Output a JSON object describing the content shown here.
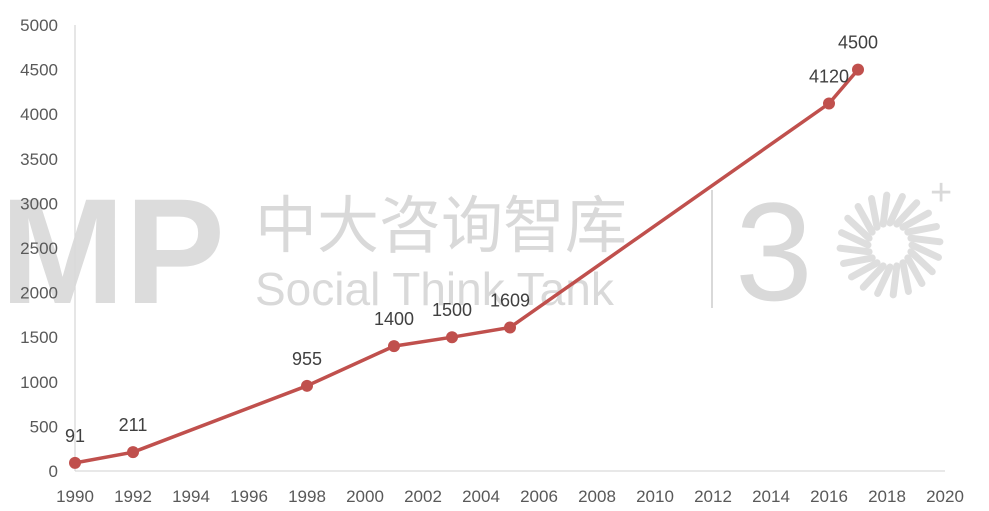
{
  "watermark": {
    "logo_text": "MP",
    "cn_title": "中大咨询智库",
    "en_title": "Social Think Tank",
    "badge_number": "3",
    "badge_sup": "+"
  },
  "chart_data": {
    "type": "line",
    "title": "",
    "xlabel": "",
    "ylabel": "",
    "xlim": [
      1990,
      2020
    ],
    "ylim": [
      0,
      5000
    ],
    "x_ticks": [
      1990,
      1992,
      1994,
      1996,
      1998,
      2000,
      2002,
      2004,
      2006,
      2008,
      2010,
      2012,
      2014,
      2016,
      2018,
      2020
    ],
    "y_ticks": [
      0,
      500,
      1000,
      1500,
      2000,
      2500,
      3000,
      3500,
      4000,
      4500,
      5000
    ],
    "grid": false,
    "legend": "none",
    "series": [
      {
        "color": "#C0504D",
        "points": [
          {
            "x": 1990,
            "y": 91
          },
          {
            "x": 1992,
            "y": 211
          },
          {
            "x": 1998,
            "y": 955
          },
          {
            "x": 2001,
            "y": 1400
          },
          {
            "x": 2003,
            "y": 1500
          },
          {
            "x": 2005,
            "y": 1609
          },
          {
            "x": 2016,
            "y": 4120
          },
          {
            "x": 2017,
            "y": 4500
          }
        ]
      }
    ]
  }
}
